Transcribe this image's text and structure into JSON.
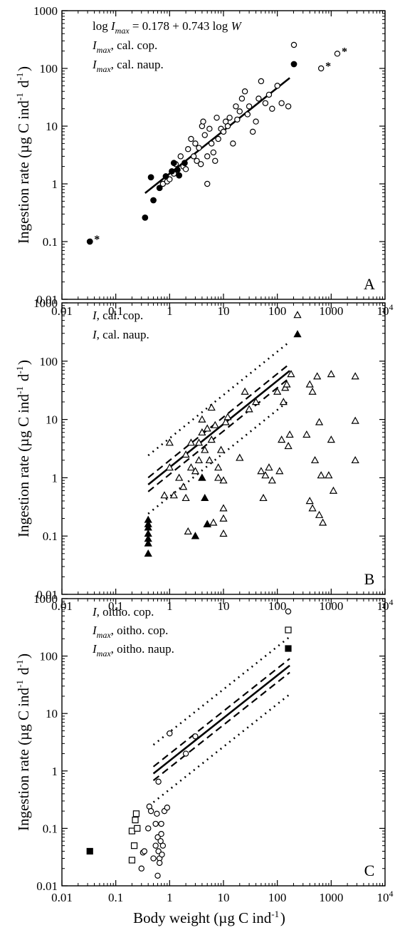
{
  "figure": {
    "xlabel": "Body weight (µg C ind⁻¹)",
    "ylabel": "Ingestion rate (µg C ind⁻¹ d⁻¹)"
  },
  "chart_data": [
    {
      "panel": "A",
      "type": "scatter",
      "xscale": "log",
      "yscale": "log",
      "xlim": [
        0.01,
        10000
      ],
      "ylim": [
        0.01,
        1000
      ],
      "x_ticks": [
        "0.01",
        "0.1",
        "1",
        "10",
        "100",
        "1000",
        "10⁴"
      ],
      "y_ticks": [
        "0.01",
        "0.1",
        "1",
        "10",
        "100",
        "1000"
      ],
      "ylabel": "Ingestion rate (µg C ind⁻¹ d⁻¹)",
      "equation": "log Imax = 0.178 + 0.743 log W",
      "legend": [
        {
          "label": "Imax, cal. cop.",
          "marker": "open-circle"
        },
        {
          "label": "Imax, cal. naup.",
          "marker": "filled-circle"
        }
      ],
      "series": [
        {
          "name": "Imax, cal. cop.",
          "marker": "open-circle",
          "points": [
            [
              0.75,
              1.0
            ],
            [
              0.9,
              1.1
            ],
            [
              1.0,
              1.2
            ],
            [
              1.2,
              1.5
            ],
            [
              1.3,
              2.2
            ],
            [
              1.6,
              3.0
            ],
            [
              1.8,
              2.0
            ],
            [
              2.0,
              1.8
            ],
            [
              2.2,
              4.0
            ],
            [
              2.5,
              6.0
            ],
            [
              2.8,
              3.0
            ],
            [
              3.0,
              5.0
            ],
            [
              3.2,
              2.5
            ],
            [
              3.5,
              4.2
            ],
            [
              3.8,
              2.2
            ],
            [
              4.0,
              10.0
            ],
            [
              4.2,
              12.0
            ],
            [
              4.5,
              7.0
            ],
            [
              5.0,
              3.0
            ],
            [
              5.0,
              1.0
            ],
            [
              5.5,
              9.0
            ],
            [
              6.0,
              5.0
            ],
            [
              6.5,
              3.5
            ],
            [
              7.0,
              2.5
            ],
            [
              7.5,
              14.0
            ],
            [
              8.0,
              6.0
            ],
            [
              9.0,
              9.0
            ],
            [
              10.0,
              8.0
            ],
            [
              11.0,
              12.0
            ],
            [
              12.0,
              10.0
            ],
            [
              13.0,
              14.0
            ],
            [
              15.0,
              5.0
            ],
            [
              17.0,
              22.0
            ],
            [
              18.0,
              13.0
            ],
            [
              20.0,
              18.0
            ],
            [
              22.0,
              30.0
            ],
            [
              25.0,
              40.0
            ],
            [
              28.0,
              16.0
            ],
            [
              30.0,
              22.0
            ],
            [
              35.0,
              8.0
            ],
            [
              40.0,
              12.0
            ],
            [
              45.0,
              30.0
            ],
            [
              50.0,
              60.0
            ],
            [
              60.0,
              25.0
            ],
            [
              70.0,
              35.0
            ],
            [
              80.0,
              20.0
            ],
            [
              100.0,
              50.0
            ],
            [
              120.0,
              25.0
            ],
            [
              160.0,
              22.0
            ],
            [
              650.0,
              100.0
            ],
            [
              1300.0,
              180.0
            ]
          ]
        },
        {
          "name": "Imax, cal. naup.",
          "marker": "filled-circle",
          "points": [
            [
              0.033,
              0.1
            ],
            [
              0.35,
              0.26
            ],
            [
              0.45,
              1.3
            ],
            [
              0.5,
              0.52
            ],
            [
              0.65,
              0.85
            ],
            [
              0.85,
              1.35
            ],
            [
              1.1,
              1.65
            ],
            [
              1.2,
              2.3
            ],
            [
              1.4,
              1.75
            ],
            [
              1.5,
              1.4
            ],
            [
              1.9,
              2.3
            ]
          ]
        }
      ],
      "regression": {
        "x": [
          0.35,
          170
        ],
        "style": "solid"
      },
      "starred_points": [
        [
          0.033,
          0.1
        ],
        [
          650.0,
          100.0
        ],
        [
          1300.0,
          180.0
        ]
      ]
    },
    {
      "panel": "B",
      "type": "scatter",
      "xscale": "log",
      "yscale": "log",
      "xlim": [
        0.01,
        10000
      ],
      "ylim": [
        0.01,
        1000
      ],
      "x_ticks": [
        "0.01",
        "0.1",
        "1",
        "10",
        "100",
        "1000",
        "10⁴"
      ],
      "y_ticks": [
        "0.01",
        "0.1",
        "1",
        "10",
        "100",
        "1000"
      ],
      "ylabel": "Ingestion rate (µg C ind⁻¹ d⁻¹)",
      "legend": [
        {
          "label": "I, cal. cop.",
          "marker": "open-triangle"
        },
        {
          "label": "I, cal. naup.",
          "marker": "filled-triangle"
        }
      ],
      "series": [
        {
          "name": "I, cal. cop.",
          "marker": "open-triangle",
          "points": [
            [
              0.8,
              0.5
            ],
            [
              1.0,
              1.5
            ],
            [
              1.0,
              4.0
            ],
            [
              1.2,
              0.5
            ],
            [
              1.5,
              1.0
            ],
            [
              1.8,
              0.7
            ],
            [
              2.0,
              2.5
            ],
            [
              2.0,
              0.45
            ],
            [
              2.2,
              0.12
            ],
            [
              2.5,
              1.5
            ],
            [
              2.5,
              4.0
            ],
            [
              3.0,
              1.3
            ],
            [
              3.0,
              0.1
            ],
            [
              3.5,
              2.0
            ],
            [
              3.5,
              4.0
            ],
            [
              4.0,
              1.0
            ],
            [
              4.0,
              6.0
            ],
            [
              4.0,
              10.0
            ],
            [
              4.5,
              3.0
            ],
            [
              5.0,
              7.0
            ],
            [
              5.0,
              0.16
            ],
            [
              5.5,
              2.0
            ],
            [
              6.0,
              16.0
            ],
            [
              6.0,
              4.5
            ],
            [
              6.5,
              0.17
            ],
            [
              7.0,
              8.0
            ],
            [
              8.0,
              1.0
            ],
            [
              8.0,
              1.5
            ],
            [
              9.0,
              3.0
            ],
            [
              10.0,
              0.9
            ],
            [
              10.0,
              0.3
            ],
            [
              10.0,
              0.2
            ],
            [
              10.0,
              0.11
            ],
            [
              11.0,
              9.0
            ],
            [
              12.0,
              11.0
            ],
            [
              20.0,
              2.2
            ],
            [
              25.0,
              30.0
            ],
            [
              30.0,
              15.0
            ],
            [
              40.0,
              20.0
            ],
            [
              50.0,
              1.3
            ],
            [
              55.0,
              0.45
            ],
            [
              60.0,
              1.1
            ],
            [
              70.0,
              1.5
            ],
            [
              80.0,
              0.9
            ],
            [
              100.0,
              30.0
            ],
            [
              110.0,
              1.3
            ],
            [
              120.0,
              4.5
            ],
            [
              130.0,
              20.0
            ],
            [
              140.0,
              35.0
            ],
            [
              150.0,
              40.0
            ],
            [
              160.0,
              3.5
            ],
            [
              170.0,
              5.5
            ],
            [
              180.0,
              60.0
            ],
            [
              350.0,
              5.5
            ],
            [
              400.0,
              40.0
            ],
            [
              400.0,
              0.4
            ],
            [
              450.0,
              30.0
            ],
            [
              450.0,
              0.3
            ],
            [
              500.0,
              2.0
            ],
            [
              550.0,
              55.0
            ],
            [
              600.0,
              9.0
            ],
            [
              600.0,
              0.23
            ],
            [
              650.0,
              1.1
            ],
            [
              700.0,
              0.17
            ],
            [
              900.0,
              1.1
            ],
            [
              1000.0,
              60.0
            ],
            [
              1000.0,
              4.5
            ],
            [
              1100.0,
              0.6
            ],
            [
              2800.0,
              55.0
            ],
            [
              2800.0,
              9.5
            ],
            [
              2800.0,
              2.0
            ]
          ]
        },
        {
          "name": "I, cal. naup.",
          "marker": "filled-triangle",
          "points": [
            [
              0.4,
              0.05
            ],
            [
              0.4,
              0.075
            ],
            [
              0.4,
              0.09
            ],
            [
              0.4,
              0.11
            ],
            [
              0.4,
              0.14
            ],
            [
              0.4,
              0.16
            ],
            [
              0.4,
              0.19
            ],
            [
              3.0,
              0.1
            ],
            [
              4.0,
              1.0
            ],
            [
              4.5,
              0.45
            ],
            [
              5.0,
              0.16
            ]
          ]
        }
      ],
      "regression": {
        "x": [
          0.4,
          170
        ],
        "style": "solid"
      },
      "confidence_band": {
        "x": [
          0.4,
          170
        ],
        "style": "dashed"
      },
      "prediction_band": {
        "x": [
          0.4,
          170
        ],
        "style": "dotted"
      }
    },
    {
      "panel": "C",
      "type": "scatter",
      "xscale": "log",
      "yscale": "log",
      "xlim": [
        0.01,
        10000
      ],
      "ylim": [
        0.01,
        1000
      ],
      "x_ticks": [
        "0.01",
        "0.1",
        "1",
        "10",
        "100",
        "1000",
        "10⁴"
      ],
      "y_ticks": [
        "0.01",
        "0.1",
        "1",
        "10",
        "100",
        "1000"
      ],
      "xlabel": "Body weight (µg C ind⁻¹)",
      "ylabel": "Ingestion rate (µg C ind⁻¹ d⁻¹)",
      "legend": [
        {
          "label": "I, oitho. cop.",
          "marker": "open-circle"
        },
        {
          "label": "Imax, oitho. cop.",
          "marker": "open-square"
        },
        {
          "label": "Imax, oitho. naup.",
          "marker": "filled-square"
        }
      ],
      "series": [
        {
          "name": "I, oitho. cop.",
          "marker": "open-circle",
          "points": [
            [
              0.3,
              0.02
            ],
            [
              0.32,
              0.038
            ],
            [
              0.34,
              0.04
            ],
            [
              0.4,
              0.1
            ],
            [
              0.42,
              0.24
            ],
            [
              0.45,
              0.2
            ],
            [
              0.5,
              0.03
            ],
            [
              0.55,
              0.05
            ],
            [
              0.55,
              0.12
            ],
            [
              0.58,
              0.18
            ],
            [
              0.6,
              0.07
            ],
            [
              0.6,
              0.015
            ],
            [
              0.62,
              0.04
            ],
            [
              0.65,
              0.03
            ],
            [
              0.65,
              0.025
            ],
            [
              0.68,
              0.06
            ],
            [
              0.7,
              0.12
            ],
            [
              0.7,
              0.08
            ],
            [
              0.72,
              0.035
            ],
            [
              0.75,
              0.05
            ],
            [
              0.8,
              0.2
            ],
            [
              0.9,
              0.23
            ],
            [
              0.62,
              0.65
            ],
            [
              1.0,
              4.5
            ],
            [
              2.0,
              2.0
            ],
            [
              3.0,
              4.0
            ]
          ]
        },
        {
          "name": "Imax, oitho. cop.",
          "marker": "open-square",
          "points": [
            [
              0.2,
              0.09
            ],
            [
              0.2,
              0.028
            ],
            [
              0.22,
              0.05
            ],
            [
              0.23,
              0.14
            ],
            [
              0.24,
              0.18
            ],
            [
              0.25,
              0.1
            ]
          ]
        },
        {
          "name": "Imax, oitho. naup.",
          "marker": "filled-square",
          "points": [
            [
              0.033,
              0.04
            ]
          ]
        }
      ],
      "regression": {
        "x": [
          0.5,
          170
        ],
        "style": "solid"
      },
      "confidence_band": {
        "x": [
          0.5,
          170
        ],
        "style": "dashed"
      },
      "prediction_band": {
        "x": [
          0.5,
          170
        ],
        "style": "dotted"
      }
    }
  ]
}
